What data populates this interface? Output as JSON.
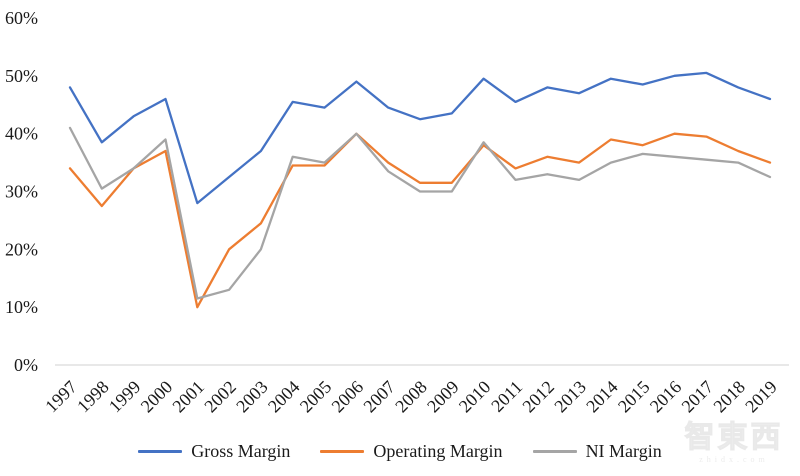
{
  "chart_data": {
    "type": "line",
    "title": "",
    "xlabel": "",
    "ylabel": "",
    "x_labels": [
      "1997",
      "1998",
      "1999",
      "2000",
      "2001",
      "2002",
      "2003",
      "2004",
      "2005",
      "2006",
      "2007",
      "2008",
      "2009",
      "2010",
      "2011",
      "2012",
      "2013",
      "2014",
      "2015",
      "2016",
      "2017",
      "2018",
      "2019"
    ],
    "series": [
      {
        "name": "Gross Margin",
        "color": "#4472C4",
        "values": [
          48,
          38.5,
          43,
          46,
          28,
          32.5,
          37,
          45.5,
          44.5,
          49,
          44.5,
          42.5,
          43.5,
          49.5,
          45.5,
          48,
          47,
          49.5,
          48.5,
          50,
          50.5,
          48,
          46
        ]
      },
      {
        "name": "Operating Margin",
        "color": "#ED7D31",
        "values": [
          34,
          27.5,
          34,
          37,
          10,
          20,
          24.5,
          34.5,
          34.5,
          40,
          35,
          31.5,
          31.5,
          38,
          34,
          36,
          35,
          39,
          38,
          40,
          39.5,
          37,
          35
        ]
      },
      {
        "name": "NI Margin",
        "color": "#A5A5A5",
        "values": [
          41,
          30.5,
          34,
          39,
          11.5,
          13,
          20,
          36,
          35,
          40,
          33.5,
          30,
          30,
          38.5,
          32,
          33,
          32,
          35,
          36.5,
          36,
          35.5,
          35,
          32.5
        ]
      }
    ],
    "y_ticks": [
      "0%",
      "10%",
      "20%",
      "30%",
      "40%",
      "50%",
      "60%"
    ],
    "ylim": [
      0,
      60
    ],
    "y_tick_step": 10,
    "unit": "%",
    "grid": false,
    "legend_position": "bottom",
    "axis_line_color": "#D9D9D9"
  },
  "watermark": {
    "logo": "智東西",
    "site": "zhidx.com"
  }
}
